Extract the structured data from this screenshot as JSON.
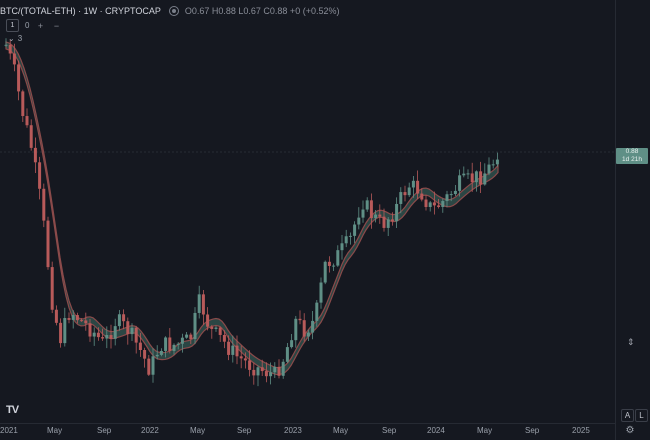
{
  "legend": {
    "symbol": "BTC/(TOTAL-ETH) · 1W · CRYPTOCAP",
    "ohlc": "O0.67 H0.88 L0.67 C0.88 +0 (+0.52%)"
  },
  "indicators": {
    "badge": "1",
    "zero_value": "0",
    "plus": "+",
    "minus": "−",
    "count": "3"
  },
  "price_tag": {
    "line1": "0.88",
    "line2": "1d 21h"
  },
  "scale_buttons": {
    "auto": "A",
    "log": "L"
  },
  "xaxis": {
    "labels": [
      "2021",
      "May",
      "Sep",
      "2022",
      "May",
      "Sep",
      "2023",
      "May",
      "Sep",
      "2024",
      "May",
      "Sep",
      "2025"
    ]
  },
  "colors": {
    "background": "#151820",
    "up": "#5f8f86",
    "down": "#b85a5a",
    "ma_fill_up": "#3e6e62",
    "ma_fill_down": "#8a4a4a"
  },
  "icons": {
    "eye": "eye-icon",
    "logo": "tradingview-logo-icon",
    "settings": "gear-icon",
    "side": "arrows-icon"
  }
}
